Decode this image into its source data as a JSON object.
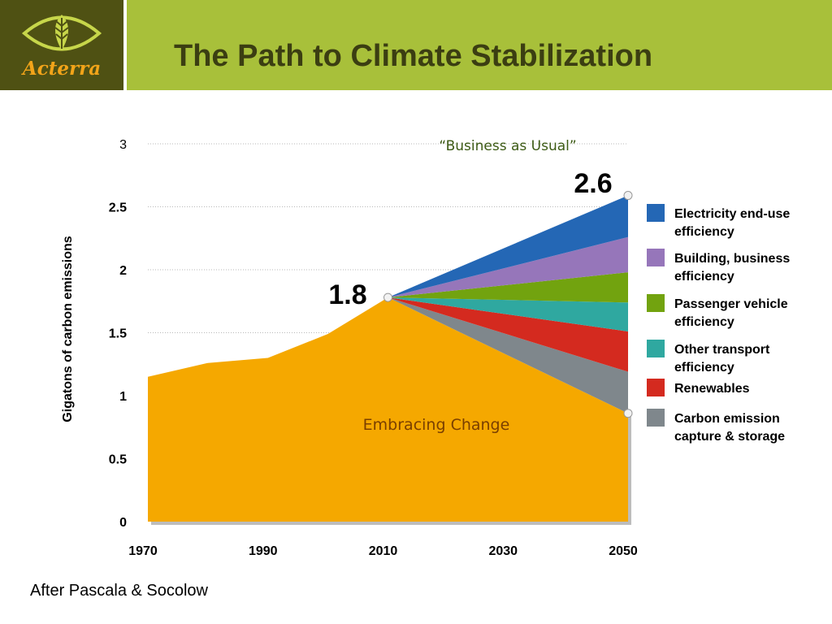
{
  "header": {
    "logo_text": "Acterra",
    "title": "The Path to Climate Stabilization"
  },
  "source": "After Pascala & Socolow",
  "colors": {
    "header_bg": "#a8c03a",
    "logo_bg": "#4f5113",
    "logo_text": "#f2a419",
    "title": "#3b3e12"
  },
  "chart_data": {
    "type": "area",
    "title": "",
    "ylabel": "Gigatons of carbon emissions",
    "xlabel": "",
    "x_ticks": [
      "1970",
      "1990",
      "2010",
      "2030",
      "2050"
    ],
    "y_ticks": [
      "0",
      "0.5",
      "1",
      "1.5",
      "2",
      "2.5",
      "3"
    ],
    "xlim": [
      1970,
      2050
    ],
    "ylim": [
      0,
      3
    ],
    "grid": "horizontal dotted",
    "legend_position": "right",
    "annotations": {
      "bau_label": "“Business as Usual”",
      "start_value": "1.8",
      "end_value": "2.6",
      "area_label": "Embracing Change"
    },
    "historical": {
      "name": "Embracing Change",
      "color": "#f5a800",
      "x": [
        1970,
        1980,
        1990,
        2000,
        2010
      ],
      "y": [
        1.15,
        1.26,
        1.3,
        1.49,
        1.78
      ]
    },
    "stabilization": {
      "x": [
        2010,
        2050
      ],
      "y": [
        1.78,
        0.86
      ]
    },
    "wedges": [
      {
        "name": "Carbon emission capture & storage",
        "color": "#7f878c",
        "x": [
          2010,
          2050
        ],
        "top": [
          1.78,
          1.19
        ]
      },
      {
        "name": "Renewables",
        "color": "#d42a1f",
        "x": [
          2010,
          2050
        ],
        "top": [
          1.78,
          1.51
        ]
      },
      {
        "name": "Other transport efficiency",
        "color": "#2fa8a0",
        "x": [
          2010,
          2050
        ],
        "top": [
          1.78,
          1.74
        ]
      },
      {
        "name": "Passenger vehicle efficiency",
        "color": "#72a30f",
        "x": [
          2010,
          2050
        ],
        "top": [
          1.78,
          1.98
        ]
      },
      {
        "name": "Building, business efficiency",
        "color": "#9676ba",
        "x": [
          2010,
          2050
        ],
        "top": [
          1.78,
          2.26
        ]
      },
      {
        "name": "Electricity end-use efficiency",
        "color": "#2467b5",
        "x": [
          2010,
          2050
        ],
        "top": [
          1.78,
          2.59
        ]
      }
    ],
    "legend": [
      {
        "label": "Electricity end-use efficiency",
        "color": "#2467b5"
      },
      {
        "label": "Building, business efficiency",
        "color": "#9676ba"
      },
      {
        "label": "Passenger vehicle efficiency",
        "color": "#72a30f"
      },
      {
        "label": "Other transport efficiency",
        "color": "#2fa8a0"
      },
      {
        "label": "Renewables",
        "color": "#d42a1f"
      },
      {
        "label": "Carbon emission capture & storage",
        "color": "#7f878c"
      }
    ]
  }
}
